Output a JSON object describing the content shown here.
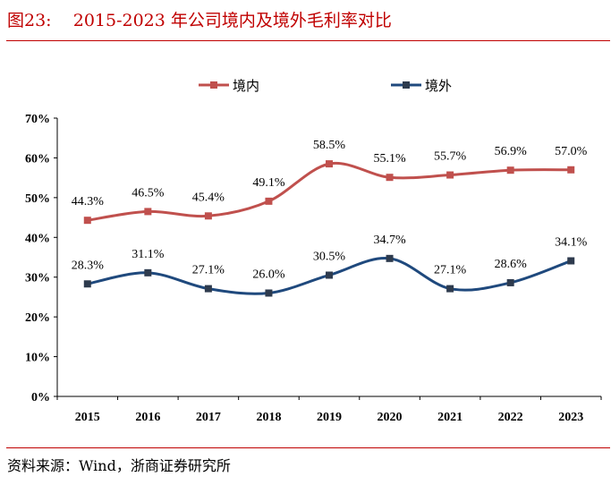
{
  "title": "图23:    2015-2023 年公司境内及境外毛利率对比",
  "source": "资料来源：Wind，浙商证券研究所",
  "chart_data": {
    "type": "line",
    "categories": [
      "2015",
      "2016",
      "2017",
      "2018",
      "2019",
      "2020",
      "2021",
      "2022",
      "2023"
    ],
    "series": [
      {
        "name": "境内",
        "color": "#c0504d",
        "values": [
          44.3,
          46.5,
          45.4,
          49.1,
          58.5,
          55.1,
          55.7,
          56.9,
          57.0
        ],
        "labels": [
          "44.3%",
          "46.5%",
          "45.4%",
          "49.1%",
          "58.5%",
          "55.1%",
          "55.7%",
          "56.9%",
          "57.0%"
        ]
      },
      {
        "name": "境外",
        "color": "#1f497d",
        "marker_color": "#2e3b4e",
        "values": [
          28.3,
          31.1,
          27.1,
          26.0,
          30.5,
          34.7,
          27.1,
          28.6,
          34.1
        ],
        "labels": [
          "28.3%",
          "31.1%",
          "27.1%",
          "26.0%",
          "30.5%",
          "34.7%",
          "27.1%",
          "28.6%",
          "34.1%"
        ]
      }
    ],
    "yticks": [
      "0%",
      "10%",
      "20%",
      "30%",
      "40%",
      "50%",
      "60%",
      "70%"
    ],
    "ylim": [
      0,
      70
    ],
    "legend": "top",
    "grid": false
  }
}
